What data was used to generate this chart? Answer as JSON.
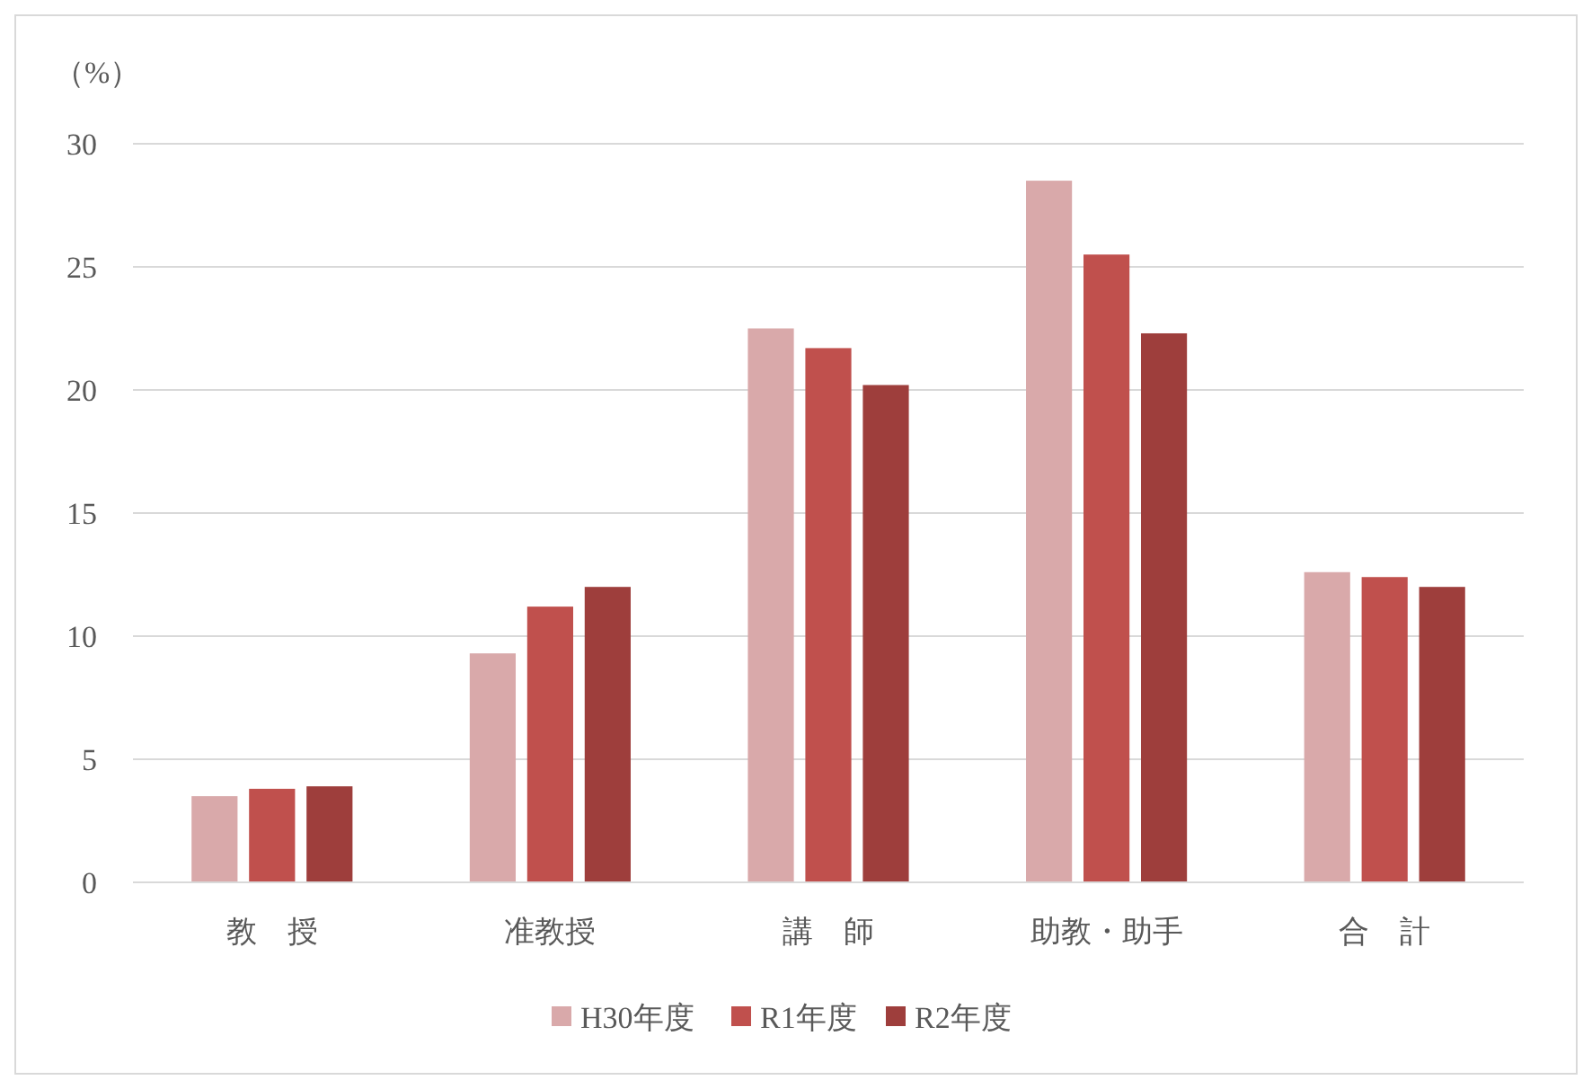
{
  "chart_data": {
    "type": "bar",
    "ylabel": "（%）",
    "categories": [
      "教　授",
      "准教授",
      "講　師",
      "助教・助手",
      "合　計"
    ],
    "series": [
      {
        "name": "H30年度",
        "color": "#d9a9aa",
        "values": [
          3.5,
          9.3,
          22.5,
          28.5,
          12.6
        ]
      },
      {
        "name": "R1年度",
        "color": "#c0504d",
        "values": [
          3.8,
          11.2,
          21.7,
          25.5,
          12.4
        ]
      },
      {
        "name": "R2年度",
        "color": "#9e3e3c",
        "values": [
          3.9,
          12.0,
          20.2,
          22.3,
          12.0
        ]
      }
    ],
    "ylim": [
      0,
      30
    ],
    "yticks": [
      0,
      5,
      10,
      15,
      20,
      25,
      30
    ],
    "grid": "y",
    "legend": "bottom"
  }
}
